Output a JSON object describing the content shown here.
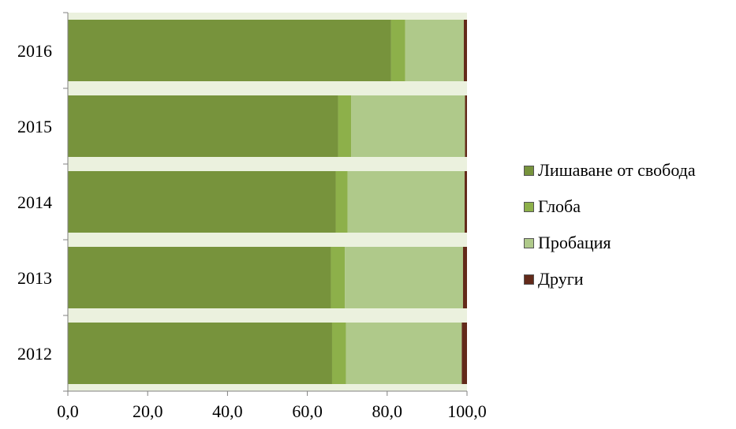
{
  "chart_data": {
    "type": "bar",
    "orientation": "horizontal",
    "stacked": true,
    "categories": [
      "2016",
      "2015",
      "2014",
      "2013",
      "2012"
    ],
    "series": [
      {
        "name": "Лишаване от свобода",
        "color": "#77933c",
        "values": [
          81.0,
          67.7,
          67.1,
          65.9,
          66.2
        ]
      },
      {
        "name": "Глоба",
        "color": "#8db04a",
        "values": [
          3.5,
          3.3,
          3.0,
          3.5,
          3.5
        ]
      },
      {
        "name": "Пробация",
        "color": "#afc98a",
        "values": [
          14.7,
          28.5,
          29.3,
          29.6,
          29.0
        ]
      },
      {
        "name": "Други",
        "color": "#632a1a",
        "values": [
          0.8,
          0.5,
          0.6,
          1.0,
          1.3
        ]
      }
    ],
    "xlim": [
      0,
      100
    ],
    "xticks": [
      "0,0",
      "20,0",
      "40,0",
      "60,0",
      "80,0",
      "100,0"
    ],
    "band_color": "#ebf1de",
    "legend_position": "right"
  }
}
